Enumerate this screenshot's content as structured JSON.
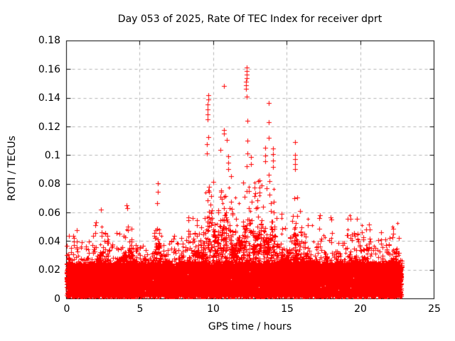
{
  "chart_data": {
    "type": "scatter",
    "title": "Day 053 of 2025, Rate Of TEC Index for receiver dprt",
    "xlabel": "GPS time / hours",
    "ylabel": "ROTI / TECUs",
    "xlim": [
      0,
      25
    ],
    "ylim": [
      0,
      0.18
    ],
    "xticks": [
      0,
      5,
      10,
      15,
      20,
      25
    ],
    "xtick_labels": [
      "0",
      "5",
      "10",
      "15",
      "20",
      "25"
    ],
    "yticks": [
      0,
      0.02,
      0.04,
      0.06,
      0.08,
      0.1,
      0.12,
      0.14,
      0.16,
      0.18
    ],
    "ytick_labels": [
      "0",
      "0.02",
      "0.04",
      "0.06",
      "0.08",
      "0.1",
      "0.12",
      "0.14",
      "0.16",
      "0.18"
    ],
    "grid": "dashed-both-axes",
    "grid_color": "#b3b3b3",
    "border_color": "#000000",
    "marker": "plus",
    "marker_color": "#ff0000",
    "legend": "none",
    "series_name": "ROTI",
    "time_range": [
      0,
      22.78
    ],
    "dense_band": {
      "floor": 0.0015,
      "top": 0.025,
      "fraction": 0.68
    },
    "spike_envelope": [
      [
        0,
        0.048
      ],
      [
        0.4,
        0.045
      ],
      [
        0.8,
        0.043
      ],
      [
        1.2,
        0.038
      ],
      [
        1.6,
        0.04
      ],
      [
        2.0,
        0.048
      ],
      [
        2.35,
        0.064
      ],
      [
        2.7,
        0.046
      ],
      [
        3.1,
        0.044
      ],
      [
        3.5,
        0.05
      ],
      [
        3.9,
        0.056
      ],
      [
        4.3,
        0.063
      ],
      [
        4.6,
        0.052
      ],
      [
        5.0,
        0.042
      ],
      [
        5.4,
        0.038
      ],
      [
        5.8,
        0.045
      ],
      [
        6.2,
        0.074
      ],
      [
        6.6,
        0.05
      ],
      [
        7.0,
        0.047
      ],
      [
        7.4,
        0.044
      ],
      [
        7.8,
        0.046
      ],
      [
        8.2,
        0.05
      ],
      [
        8.6,
        0.06
      ],
      [
        9.0,
        0.065
      ],
      [
        9.35,
        0.072
      ],
      [
        9.65,
        0.105
      ],
      [
        10.0,
        0.102
      ],
      [
        10.3,
        0.082
      ],
      [
        10.7,
        0.119
      ],
      [
        11.0,
        0.1
      ],
      [
        11.35,
        0.072
      ],
      [
        11.7,
        0.078
      ],
      [
        12.0,
        0.082
      ],
      [
        12.3,
        0.112
      ],
      [
        12.55,
        0.1
      ],
      [
        12.85,
        0.078
      ],
      [
        13.15,
        0.092
      ],
      [
        13.45,
        0.09
      ],
      [
        13.75,
        0.082
      ],
      [
        14.05,
        0.105
      ],
      [
        14.4,
        0.065
      ],
      [
        14.8,
        0.055
      ],
      [
        15.2,
        0.06
      ],
      [
        15.55,
        0.102
      ],
      [
        15.85,
        0.068
      ],
      [
        16.2,
        0.058
      ],
      [
        16.6,
        0.052
      ],
      [
        17.0,
        0.05
      ],
      [
        17.45,
        0.055
      ],
      [
        17.9,
        0.056
      ],
      [
        18.4,
        0.05
      ],
      [
        18.8,
        0.052
      ],
      [
        19.15,
        0.06
      ],
      [
        19.5,
        0.05
      ],
      [
        19.9,
        0.05
      ],
      [
        20.3,
        0.052
      ],
      [
        20.7,
        0.045
      ],
      [
        21.1,
        0.048
      ],
      [
        21.5,
        0.044
      ],
      [
        21.9,
        0.047
      ],
      [
        22.3,
        0.05
      ],
      [
        22.55,
        0.06
      ],
      [
        22.78,
        0.046
      ]
    ],
    "outlier_points": [
      [
        9.6,
        0.125
      ],
      [
        9.61,
        0.1285
      ],
      [
        9.62,
        0.132
      ],
      [
        9.62,
        0.1355
      ],
      [
        9.63,
        0.139
      ],
      [
        9.64,
        0.142
      ],
      [
        9.55,
        0.108
      ],
      [
        9.66,
        0.113
      ],
      [
        10.45,
        0.104
      ],
      [
        10.71,
        0.1485
      ],
      [
        10.7,
        0.118
      ],
      [
        10.72,
        0.1155
      ],
      [
        11.0,
        0.0995
      ],
      [
        11.01,
        0.095
      ],
      [
        12.22,
        0.1465
      ],
      [
        12.23,
        0.149
      ],
      [
        12.23,
        0.1515
      ],
      [
        12.24,
        0.154
      ],
      [
        12.25,
        0.1565
      ],
      [
        12.25,
        0.159
      ],
      [
        12.26,
        0.1613
      ],
      [
        12.28,
        0.141
      ],
      [
        12.32,
        0.124
      ],
      [
        12.33,
        0.1105
      ],
      [
        12.55,
        0.099
      ],
      [
        12.56,
        0.094
      ],
      [
        13.5,
        0.1055
      ],
      [
        13.51,
        0.1
      ],
      [
        13.52,
        0.096
      ],
      [
        13.74,
        0.1365
      ],
      [
        13.76,
        0.123
      ],
      [
        13.77,
        0.1125
      ],
      [
        14.04,
        0.105
      ],
      [
        14.05,
        0.101
      ],
      [
        14.06,
        0.0965
      ],
      [
        14.07,
        0.092
      ],
      [
        15.54,
        0.1095
      ],
      [
        15.55,
        0.1005
      ],
      [
        15.56,
        0.0975
      ],
      [
        15.56,
        0.094
      ],
      [
        15.57,
        0.0905
      ]
    ],
    "n_points": 16000,
    "seed": 20250053
  }
}
